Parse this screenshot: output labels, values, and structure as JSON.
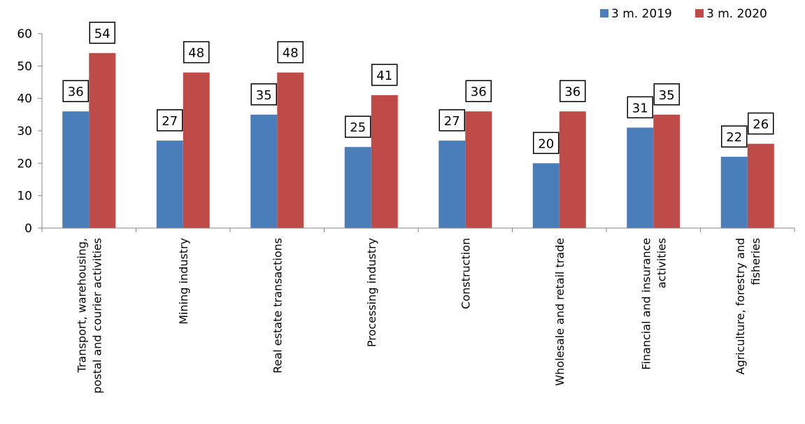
{
  "chart_data": {
    "type": "bar",
    "categories": [
      "Transport, warehousing,|postal and courier activities",
      "Mining industry",
      "Real estate transactions",
      "Processing industry",
      "Construction",
      "Wholesale and retail trade",
      "Financial and insurance|activities",
      "Agriculture, forestry and|fisheries"
    ],
    "series": [
      {
        "name": "3 m. 2019",
        "values": [
          36,
          27,
          35,
          25,
          27,
          20,
          31,
          22
        ],
        "color": "#4a7ebb"
      },
      {
        "name": "3 m. 2020",
        "values": [
          54,
          48,
          48,
          41,
          36,
          36,
          35,
          26
        ],
        "color": "#be4b48"
      }
    ],
    "yticks": [
      0,
      10,
      20,
      30,
      40,
      50,
      60
    ],
    "ylim": [
      0,
      60
    ],
    "data_labels": true,
    "legend_position": "top-right",
    "grid": false,
    "title": "",
    "xlabel": "",
    "ylabel": ""
  }
}
